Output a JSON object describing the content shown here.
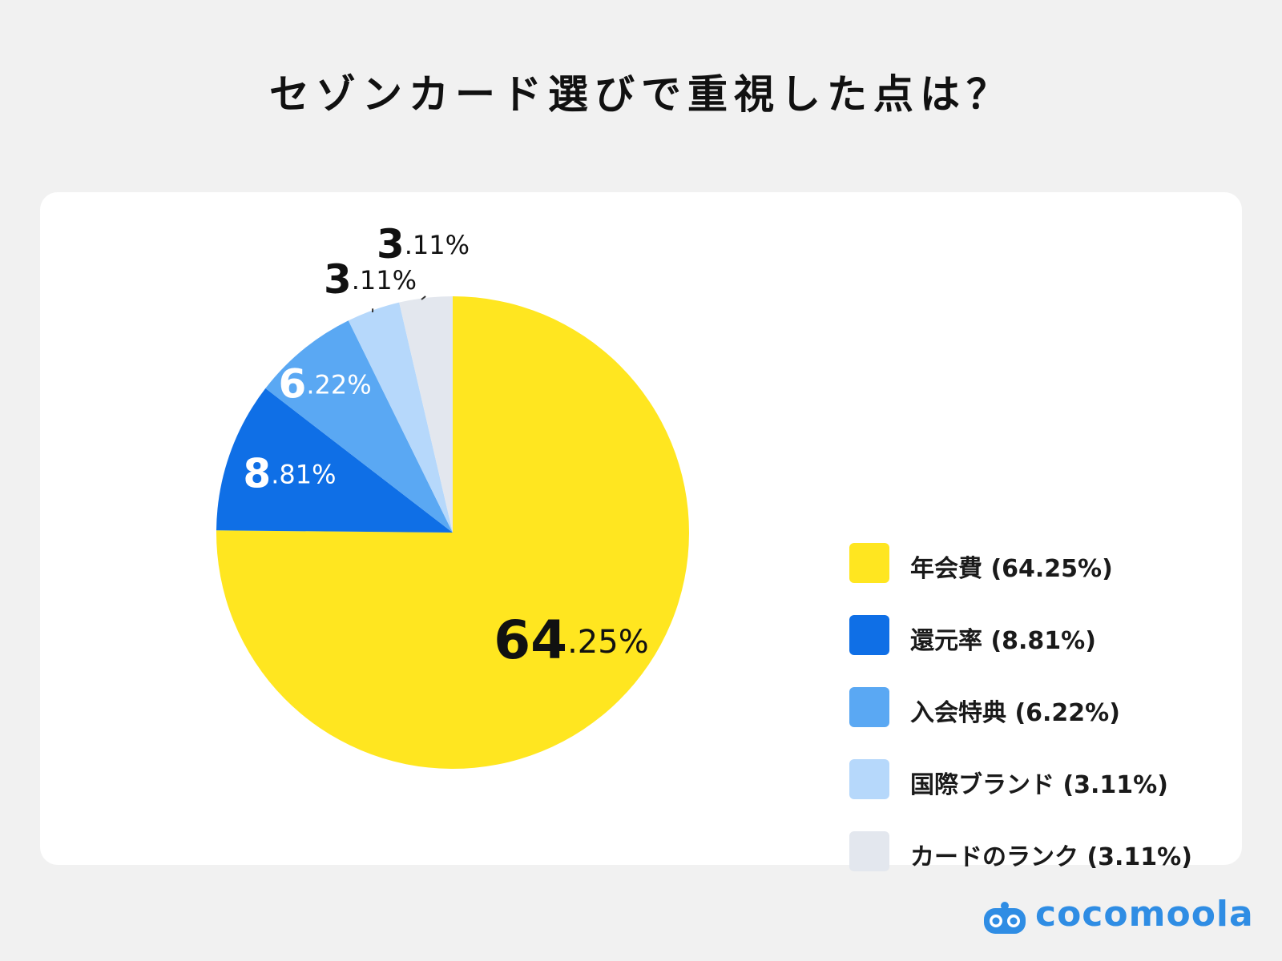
{
  "title": "セゾンカード選びで重視した点は？",
  "chart_data": {
    "type": "pie",
    "slices": [
      {
        "label": "年会費",
        "value": 64.25,
        "color": "#ffe620",
        "int": "64",
        "dec": ".25%",
        "text_color": "#111111"
      },
      {
        "label": "還元率",
        "value": 8.81,
        "color": "#0f6fe6",
        "int": "8",
        "dec": ".81%",
        "text_color": "#ffffff"
      },
      {
        "label": "入会特典",
        "value": 6.22,
        "color": "#5aa8f3",
        "int": "6",
        "dec": ".22%",
        "text_color": "#ffffff"
      },
      {
        "label": "国際ブランド",
        "value": 3.11,
        "color": "#b6d8fb",
        "int": "3",
        "dec": ".11%",
        "text_color": "#111111"
      },
      {
        "label": "カードのランク",
        "value": 3.11,
        "color": "#e3e7ee",
        "int": "3",
        "dec": ".11%",
        "text_color": "#111111"
      }
    ],
    "legend": [
      "年会費 (64.25%)",
      "還元率 (8.81%)",
      "入会特典 (6.22%)",
      "国際ブランド (3.11%)",
      "カードのランク (3.11%)"
    ],
    "legend_position": "right"
  },
  "brand": {
    "name": "cocomoola",
    "color": "#2f8de4"
  }
}
